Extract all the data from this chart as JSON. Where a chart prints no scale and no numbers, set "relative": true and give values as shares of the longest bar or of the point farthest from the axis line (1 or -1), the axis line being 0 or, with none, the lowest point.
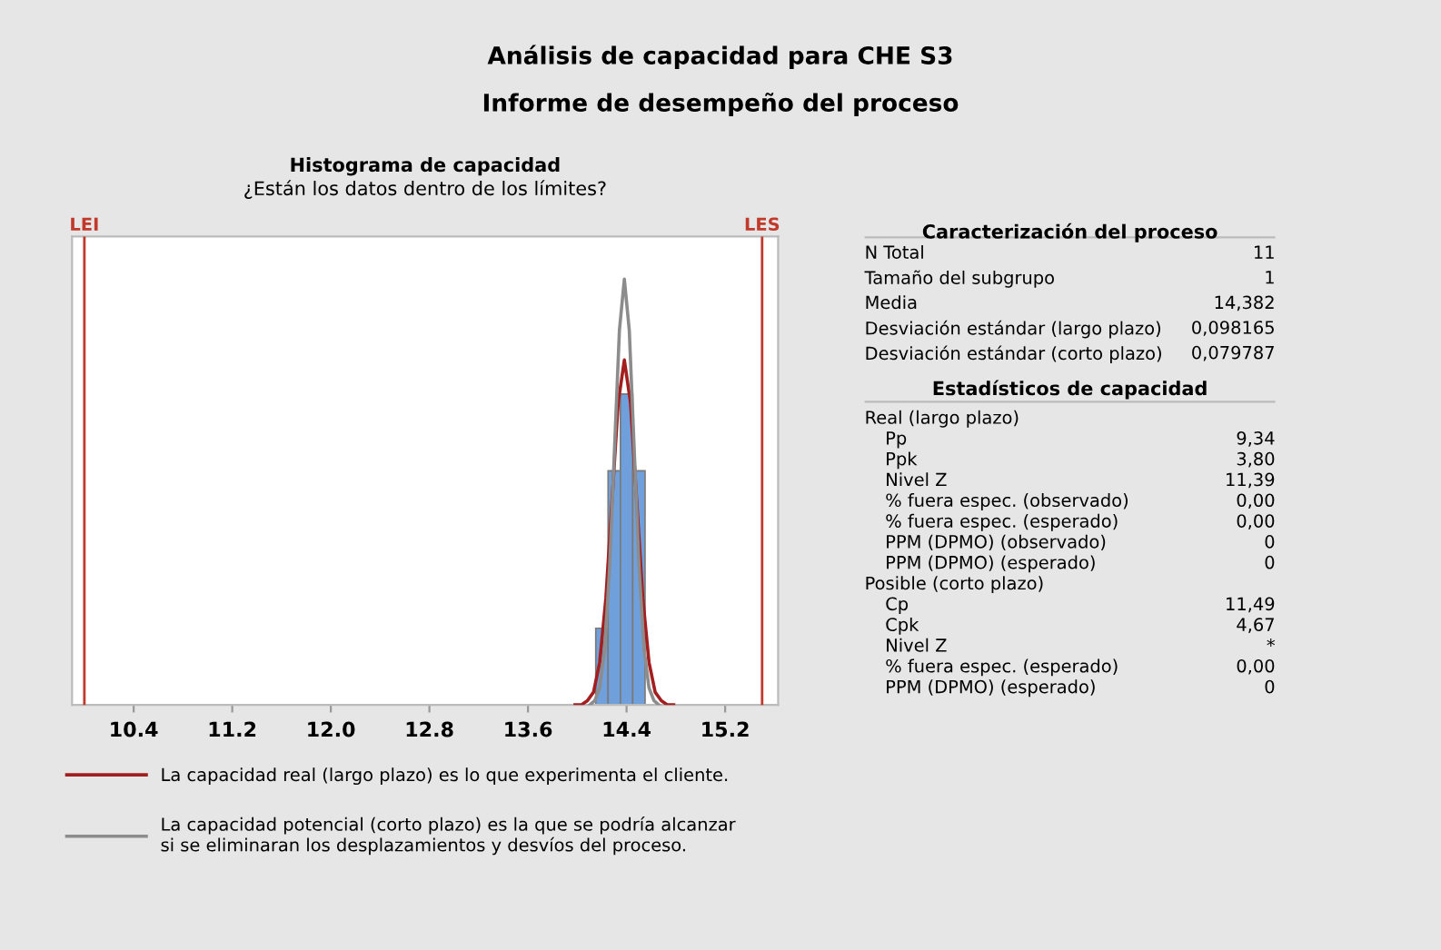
{
  "chart_data": [
    {
      "type": "other",
      "title": "Análisis de capacidad para CHE S3",
      "subtitle": "Informe de desempeño del proceso"
    },
    {
      "type": "histogram",
      "title": "Histograma de capacidad",
      "subtitle": "¿Están los datos dentro de los límites?",
      "relative": true,
      "color": "#6fa0dc",
      "bins": [
        14.15,
        14.25,
        14.35,
        14.45,
        14.55
      ],
      "values": [
        0.18,
        0.55,
        0.73,
        0.55
      ],
      "series": [
        {
          "type": "line",
          "name": "La capacidad real (largo plazo) es lo que experimenta el cliente.",
          "color": "#a31f1f",
          "x": [
            13.982,
            14.032,
            14.082,
            14.132,
            14.182,
            14.232,
            14.282,
            14.332,
            14.382,
            14.432,
            14.482,
            14.532,
            14.582,
            14.632,
            14.682,
            14.732,
            14.782
          ],
          "values": [
            0,
            0,
            0.01,
            0.03,
            0.1,
            0.25,
            0.48,
            0.71,
            0.81,
            0.71,
            0.48,
            0.25,
            0.1,
            0.03,
            0.01,
            0,
            0
          ]
        },
        {
          "type": "line",
          "name": "La capacidad potencial (corto plazo) es la que se podría alcanzar\nsi se eliminaran los desplazamientos y desvíos del proceso.",
          "color": "#8c8c8c",
          "x": [
            14.102,
            14.142,
            14.182,
            14.222,
            14.262,
            14.302,
            14.342,
            14.382,
            14.422,
            14.462,
            14.502,
            14.542,
            14.582,
            14.622,
            14.662
          ],
          "values": [
            0,
            0.01,
            0.04,
            0.13,
            0.32,
            0.6,
            0.88,
            1,
            0.88,
            0.6,
            0.32,
            0.13,
            0.04,
            0.01,
            0
          ]
        }
      ],
      "xlim": [
        9.9,
        15.63
      ],
      "xticks": [
        10.4,
        11.2,
        {
          "value": 12,
          "label": "12.0"
        },
        12.8,
        13.6,
        14.4,
        15.2
      ],
      "ref_lines": [
        {
          "axis": "x",
          "value": 10,
          "label": "LEI",
          "color": "#c0392b"
        },
        {
          "axis": "x",
          "value": 15.5,
          "label": "LES",
          "color": "#c0392b"
        }
      ],
      "grid": false,
      "legend": "bottom"
    },
    {
      "type": "other",
      "title": "Caracterización del proceso",
      "categories": [
        "N Total",
        "Tamaño del subgrupo",
        "Media",
        "Desviación estándar (largo plazo)",
        "Desviación estándar (corto plazo)"
      ],
      "value_labels": [
        "11",
        "1",
        "14,382",
        "0,098165",
        "0,079787"
      ]
    },
    {
      "type": "other",
      "title": "Estadísticos de capacidad",
      "categories": [
        "Real (largo plazo)",
        "Pp",
        "Ppk",
        "Nivel Z",
        "% fuera espec. (observado)",
        "% fuera espec. (esperado)",
        "PPM (DPMO) (observado)",
        "PPM (DPMO) (esperado)",
        "Posible (corto plazo)",
        "Cp",
        "Cpk",
        "Nivel Z",
        "% fuera espec. (esperado)",
        "PPM (DPMO) (esperado)"
      ],
      "value_labels": [
        null,
        "9,34",
        "3,80",
        "11,39",
        "0,00",
        "0,00",
        "0",
        "0",
        null,
        "11,49",
        "4,67",
        "*",
        "0,00",
        "0"
      ]
    }
  ]
}
